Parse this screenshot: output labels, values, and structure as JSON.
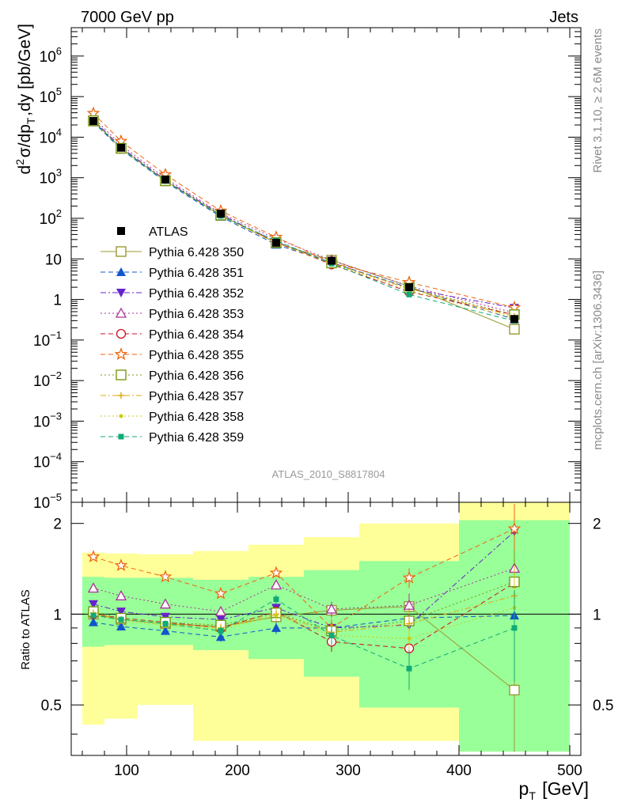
{
  "header": {
    "left": "7000 GeV pp",
    "right": "Jets"
  },
  "side_texts": {
    "upper": "Rivet 3.1.10, ≥ 2.6M events",
    "lower": "mcplots.cern.ch [arXiv:1306.3436]"
  },
  "watermark": "ATLAS_2010_S8817804",
  "axis": {
    "ylabel_main": "d²σ/dp_T,dy [pb/GeV]",
    "ylabel_ratio": "Ratio to ATLAS",
    "xlabel": "p_T [GeV]"
  },
  "legend": [
    {
      "label": "ATLAS"
    },
    {
      "label": "Pythia 6.428 350"
    },
    {
      "label": "Pythia 6.428 351"
    },
    {
      "label": "Pythia 6.428 352"
    },
    {
      "label": "Pythia 6.428 353"
    },
    {
      "label": "Pythia 6.428 354"
    },
    {
      "label": "Pythia 6.428 355"
    },
    {
      "label": "Pythia 6.428 356"
    },
    {
      "label": "Pythia 6.428 357"
    },
    {
      "label": "Pythia 6.428 358"
    },
    {
      "label": "Pythia 6.428 359"
    }
  ],
  "chart_data": {
    "type": "line",
    "x": [
      70,
      95,
      135,
      185,
      235,
      285,
      355,
      450
    ],
    "x_edges": [
      60,
      80,
      110,
      160,
      210,
      260,
      310,
      400,
      500
    ],
    "xlim": [
      50,
      510
    ],
    "xticks": [
      100,
      200,
      300,
      400,
      500
    ],
    "main": {
      "yscale": "log",
      "ylim": [
        1e-05,
        5000000
      ],
      "yticks": [
        {
          "v": 1e-05,
          "b": "10",
          "e": "−5"
        },
        {
          "v": 0.0001,
          "b": "10",
          "e": "−4"
        },
        {
          "v": 0.001,
          "b": "10",
          "e": "−3"
        },
        {
          "v": 0.01,
          "b": "10",
          "e": "−2"
        },
        {
          "v": 0.1,
          "b": "10",
          "e": "−1"
        },
        {
          "v": 1,
          "b": "1",
          "e": ""
        },
        {
          "v": 10,
          "b": "10",
          "e": ""
        },
        {
          "v": 100,
          "b": "10",
          "e": "2"
        },
        {
          "v": 1000,
          "b": "10",
          "e": "3"
        },
        {
          "v": 10000,
          "b": "10",
          "e": "4"
        },
        {
          "v": 100000,
          "b": "10",
          "e": "5"
        },
        {
          "v": 1000000,
          "b": "10",
          "e": "6"
        }
      ],
      "data": {
        "name": "ATLAS",
        "values": [
          25000,
          5500,
          900,
          130,
          25,
          9,
          2,
          0.33
        ]
      }
    },
    "ratio": {
      "yscale": "log",
      "ylim": [
        0.34,
        2.35
      ],
      "yticks": [
        {
          "v": 0.5,
          "label": "0.5"
        },
        {
          "v": 1,
          "label": "1"
        },
        {
          "v": 2,
          "label": "2"
        }
      ],
      "band_stat": [
        [
          0.78,
          1.33
        ],
        [
          0.79,
          1.32
        ],
        [
          0.79,
          1.32
        ],
        [
          0.76,
          1.3
        ],
        [
          0.71,
          1.33
        ],
        [
          0.62,
          1.4
        ],
        [
          0.49,
          1.5
        ],
        [
          0.35,
          2.05
        ]
      ],
      "band_total": [
        [
          0.43,
          1.6
        ],
        [
          0.45,
          1.59
        ],
        [
          0.5,
          1.58
        ],
        [
          0.38,
          1.62
        ],
        [
          0.38,
          1.7
        ],
        [
          0.38,
          1.8
        ],
        [
          0.38,
          2.0
        ],
        [
          0.35,
          2.35
        ]
      ]
    },
    "series": [
      {
        "name": "Pythia 6.428 350",
        "color": "#999933",
        "marker": "open-square",
        "dash": "solid",
        "ratio": [
          1.0,
          0.96,
          0.93,
          0.91,
          0.98,
          1.03,
          1.06,
          0.56
        ],
        "err": [
          0.02,
          0.02,
          0.02,
          0.03,
          0.04,
          0.06,
          0.08,
          0.28
        ]
      },
      {
        "name": "Pythia 6.428 351",
        "color": "#1155cc",
        "marker": "filled-triangle-up",
        "dash": "dashed",
        "ratio": [
          0.94,
          0.91,
          0.88,
          0.84,
          0.9,
          0.9,
          0.97,
          0.99
        ],
        "err": [
          0.02,
          0.02,
          0.02,
          0.03,
          0.04,
          0.06,
          0.1,
          0.3
        ]
      },
      {
        "name": "Pythia 6.428 352",
        "color": "#6622cc",
        "marker": "filled-triangle-down",
        "dash": "dashdot",
        "ratio": [
          1.08,
          1.02,
          0.98,
          0.96,
          1.05,
          0.9,
          0.92,
          1.88
        ],
        "err": [
          0.02,
          0.02,
          0.02,
          0.03,
          0.04,
          0.06,
          0.1,
          0.4
        ]
      },
      {
        "name": "Pythia 6.428 353",
        "color": "#aa3399",
        "marker": "open-triangle-up",
        "dash": "dotted",
        "ratio": [
          1.22,
          1.15,
          1.08,
          1.02,
          1.25,
          1.04,
          1.07,
          1.42
        ],
        "err": [
          0.02,
          0.02,
          0.02,
          0.03,
          0.04,
          0.06,
          0.1,
          0.35
        ]
      },
      {
        "name": "Pythia 6.428 354",
        "color": "#cc1122",
        "marker": "open-circle",
        "dash": "dashed",
        "ratio": [
          1.0,
          0.97,
          0.94,
          0.9,
          1.02,
          0.81,
          0.77,
          1.27
        ],
        "err": [
          0.02,
          0.02,
          0.02,
          0.03,
          0.04,
          0.06,
          0.1,
          0.35
        ]
      },
      {
        "name": "Pythia 6.428 355",
        "color": "#ee6611",
        "marker": "open-star",
        "dash": "dashed",
        "ratio": [
          1.55,
          1.45,
          1.33,
          1.17,
          1.37,
          0.9,
          1.32,
          1.92
        ],
        "err": [
          0.02,
          0.02,
          0.02,
          0.03,
          0.04,
          0.06,
          0.1,
          0.4
        ]
      },
      {
        "name": "Pythia 6.428 356",
        "color": "#779911",
        "marker": "open-square",
        "dash": "dotted",
        "ratio": [
          1.02,
          0.97,
          0.94,
          0.92,
          1.01,
          0.88,
          0.95,
          1.28
        ],
        "err": [
          0.02,
          0.02,
          0.02,
          0.03,
          0.04,
          0.06,
          0.1,
          0.35
        ]
      },
      {
        "name": "Pythia 6.428 357",
        "color": "#ddaa11",
        "marker": "small-cross",
        "dash": "dashdot",
        "ratio": [
          1.01,
          0.96,
          0.93,
          0.9,
          1.0,
          0.87,
          0.93,
          1.15
        ],
        "err": [
          0.02,
          0.02,
          0.02,
          0.03,
          0.04,
          0.06,
          0.1,
          0.3
        ]
      },
      {
        "name": "Pythia 6.428 358",
        "color": "#cccc11",
        "marker": "small-dot",
        "dash": "dotted",
        "ratio": [
          1.0,
          0.95,
          0.92,
          0.89,
          0.99,
          0.85,
          0.83,
          1.05
        ],
        "err": [
          0.02,
          0.02,
          0.02,
          0.03,
          0.04,
          0.06,
          0.1,
          0.3
        ]
      },
      {
        "name": "Pythia 6.428 359",
        "color": "#11aa77",
        "marker": "filled-square-small",
        "dash": "dashed",
        "ratio": [
          0.99,
          0.96,
          0.93,
          0.88,
          1.12,
          0.85,
          0.66,
          0.9
        ],
        "err": [
          0.02,
          0.02,
          0.02,
          0.03,
          0.04,
          0.06,
          0.1,
          0.3
        ]
      }
    ]
  }
}
